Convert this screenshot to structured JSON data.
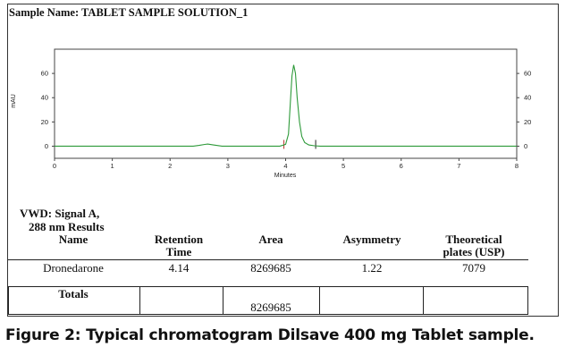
{
  "sample_name": "Sample Name: TABLET SAMPLE SOLUTION_1",
  "chart_data": {
    "type": "line",
    "ylabel": "mAU",
    "xlabel": "Minutes",
    "xlim": [
      0,
      8
    ],
    "ylim": [
      -10,
      80
    ],
    "x_ticks": [
      "0",
      "1",
      "2",
      "3",
      "4",
      "5",
      "6",
      "7",
      "8"
    ],
    "y_ticks": [
      "0",
      "20",
      "40",
      "60"
    ],
    "grid": false,
    "line_color": "#2e9a3a",
    "series": [
      {
        "x": [
          0,
          2.4,
          2.5,
          2.6,
          2.65,
          2.75,
          2.9,
          3.9,
          4.0,
          4.05,
          4.08,
          4.11,
          4.14,
          4.17,
          4.2,
          4.24,
          4.28,
          4.33,
          4.4,
          4.5,
          4.6,
          8
        ],
        "y": [
          0,
          0,
          0.6,
          1.4,
          1.7,
          1.0,
          0,
          0,
          1.5,
          10,
          35,
          58,
          67,
          60,
          40,
          20,
          8,
          3,
          1,
          0.3,
          0,
          0
        ]
      }
    ],
    "annotations": [
      {
        "type": "marker",
        "x": 3.97,
        "color": "#c03030"
      },
      {
        "type": "marker",
        "x": 4.52,
        "color": "#222222"
      }
    ]
  },
  "results": {
    "title_line1": "VWD: Signal A,",
    "title_line2": "288 nm Results",
    "headers": {
      "name": "Name",
      "retention_l1": "Retention",
      "retention_l2": "Time",
      "area": "Area",
      "asymmetry": "Asymmetry",
      "theoretical_l1": "Theoretical",
      "theoretical_l2": "plates (USP)"
    },
    "row": {
      "name": "Dronedarone",
      "retention": "4.14",
      "area": "8269685",
      "asymmetry": "1.22",
      "plates": "7079"
    },
    "totals": {
      "label": "Totals",
      "area": "8269685"
    }
  },
  "caption": "Figure 2: Typical chromatogram Dilsave 400 mg Tablet sample."
}
